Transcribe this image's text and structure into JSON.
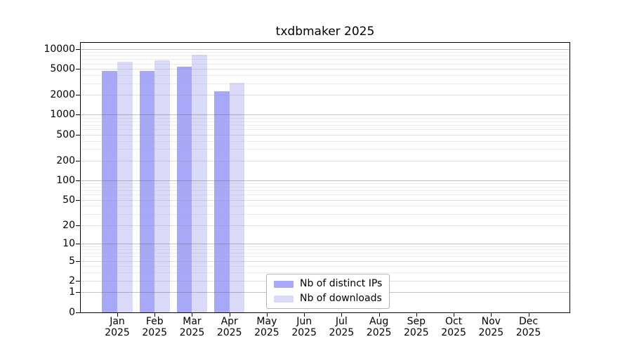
{
  "chart_data": {
    "type": "bar",
    "title": "txdbmaker 2025",
    "categories": [
      "Jan",
      "Feb",
      "Mar",
      "Apr",
      "May",
      "Jun",
      "Jul",
      "Aug",
      "Sep",
      "Oct",
      "Nov",
      "Dec"
    ],
    "x_sublabel": "2025",
    "series": [
      {
        "name": "Nb of distinct IPs",
        "color": "#a8a8f8",
        "values": [
          4700,
          4750,
          5400,
          2300,
          0,
          0,
          0,
          0,
          0,
          0,
          0,
          0
        ]
      },
      {
        "name": "Nb of downloads",
        "color": "#d9d9f8",
        "values": [
          6500,
          6850,
          8200,
          3100,
          0,
          0,
          0,
          0,
          0,
          0,
          0,
          0
        ]
      }
    ],
    "yticks": [
      0,
      1,
      2,
      5,
      10,
      20,
      50,
      100,
      200,
      500,
      1000,
      2000,
      5000,
      10000
    ],
    "ylim": [
      0,
      12500
    ],
    "yscale": "log10(1+y)",
    "grid": true,
    "legend_position": "lower center",
    "colors": {
      "grid_major": "#c6c6c6",
      "grid_minor": "#ececec",
      "axis": "#000000",
      "background": "#ffffff"
    }
  }
}
